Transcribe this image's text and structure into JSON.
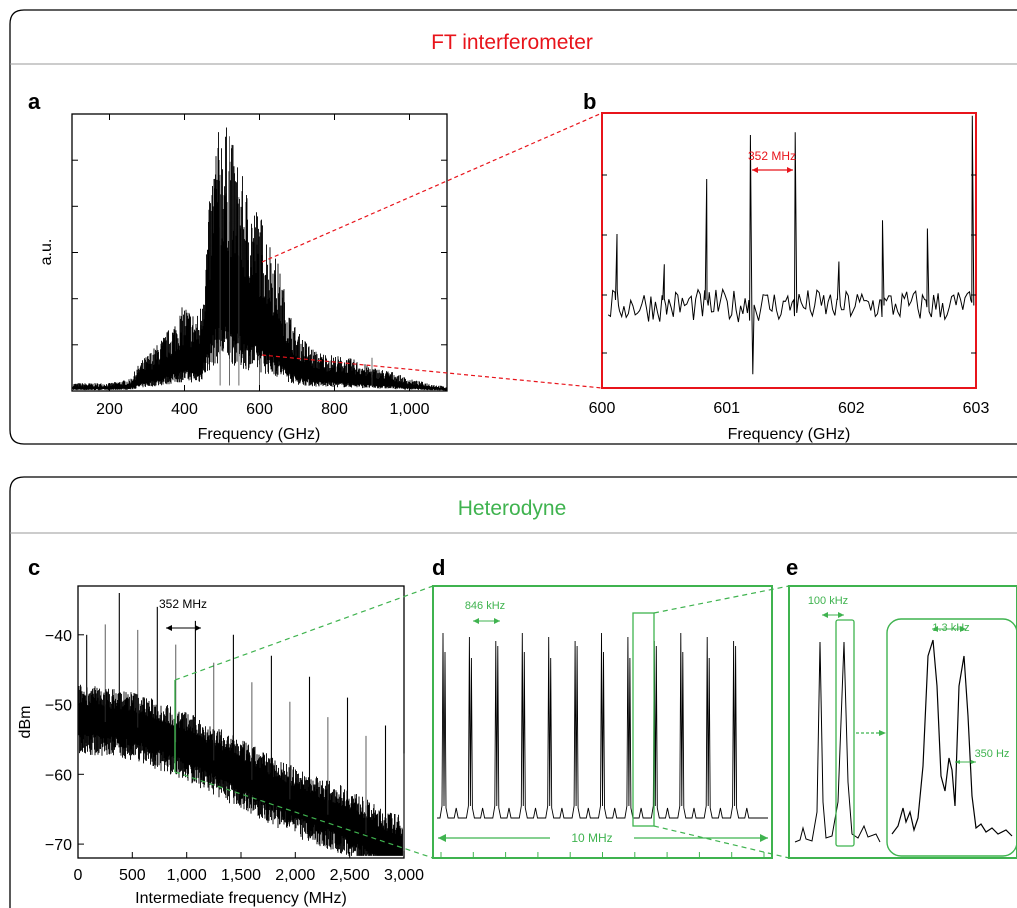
{
  "sections": {
    "ft": {
      "title": "FT interferometer",
      "color": "#e8141b"
    },
    "het": {
      "title": "Heterodyne",
      "color": "#3fb34f"
    }
  },
  "panel_labels": {
    "a": "a",
    "b": "b",
    "c": "c",
    "d": "d",
    "e": "e"
  },
  "colors": {
    "ft_accent": "#e8141b",
    "het_accent": "#3fb34f",
    "trace": "#000000"
  },
  "chart_data": [
    {
      "id": "a",
      "type": "line",
      "xlabel": "Frequency (GHz)",
      "ylabel": "a.u.",
      "xlim": [
        100,
        1100
      ],
      "xticks": [
        200,
        400,
        600,
        800,
        1000
      ],
      "xtick_labels": [
        "200",
        "400",
        "600",
        "800",
        "1,000"
      ],
      "envelope": {
        "x": [
          100,
          200,
          255,
          280,
          330,
          370,
          400,
          420,
          440,
          460,
          480,
          500,
          520,
          540,
          560,
          580,
          600,
          620,
          650,
          680,
          700,
          720,
          750,
          800,
          850,
          900,
          950,
          1000,
          1050,
          1100
        ],
        "y": [
          0.02,
          0.02,
          0.03,
          0.07,
          0.12,
          0.17,
          0.22,
          0.2,
          0.19,
          0.4,
          0.62,
          0.68,
          0.65,
          0.58,
          0.52,
          0.48,
          0.45,
          0.4,
          0.32,
          0.2,
          0.15,
          0.13,
          0.1,
          0.09,
          0.08,
          0.06,
          0.05,
          0.03,
          0.02,
          0.01
        ]
      }
    },
    {
      "id": "b",
      "type": "line",
      "xlabel": "Frequency (GHz)",
      "xlim": [
        600,
        603
      ],
      "xticks": [
        600,
        601,
        602,
        603
      ],
      "xtick_labels": [
        "600",
        "601",
        "602",
        "603"
      ],
      "annotation": "352 MHz",
      "peaks": {
        "x": [
          600.12,
          600.5,
          600.84,
          601.19,
          601.55,
          601.9,
          602.25,
          602.61,
          602.97
        ],
        "y": [
          0.56,
          0.45,
          0.76,
          0.92,
          0.93,
          0.46,
          0.61,
          0.58,
          0.99
        ]
      },
      "baseline": 0.3
    },
    {
      "id": "c",
      "type": "line",
      "xlabel": "Intermediate frequency (MHz)",
      "ylabel": "dBm",
      "xlim": [
        0,
        3000
      ],
      "ylim": [
        -72,
        -33
      ],
      "xticks": [
        0,
        500,
        1000,
        1500,
        2000,
        2500,
        3000
      ],
      "xtick_labels": [
        "0",
        "500",
        "1,000",
        "1,500",
        "2,000",
        "2,500",
        "3,000"
      ],
      "yticks": [
        -40,
        -50,
        -60,
        -70
      ],
      "ytick_labels": [
        "−40",
        "−50",
        "−60",
        "−70"
      ],
      "annotation": "352 MHz",
      "noise_floor": {
        "x": [
          0,
          500,
          1000,
          1500,
          2000,
          2500,
          2800,
          3000
        ],
        "y": [
          -52,
          -53,
          -56,
          -60,
          -64,
          -67,
          -70,
          -71
        ]
      },
      "peaks": {
        "x": [
          80,
          380,
          730,
          1080,
          1430,
          1780,
          2130,
          2480,
          2830
        ],
        "y": [
          -40,
          -34,
          -36,
          -38,
          -40,
          -43,
          -46,
          -49,
          -53
        ]
      }
    },
    {
      "id": "d",
      "type": "line",
      "annotation_top": "846 kHz",
      "annotation_bottom": "10 MHz",
      "peak_count": 12
    },
    {
      "id": "e",
      "type": "line",
      "annotation_left": "100 kHz",
      "annotation_inset_top": "1.3 kHz",
      "annotation_inset_right": "350 Hz"
    }
  ]
}
